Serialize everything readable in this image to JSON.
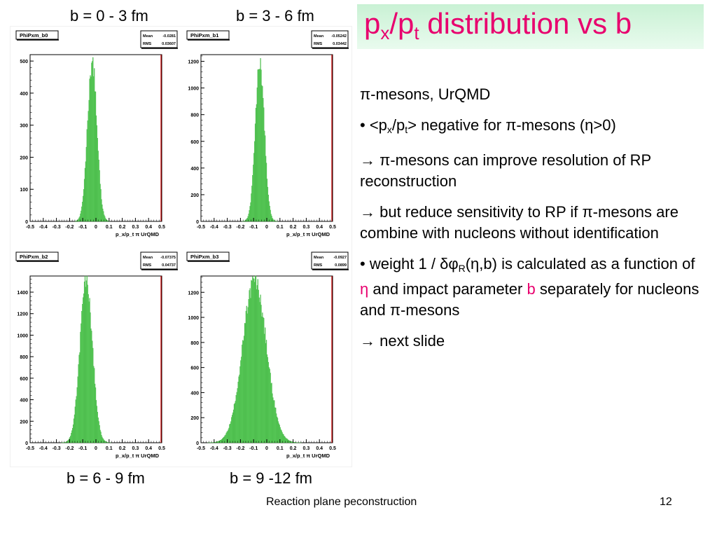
{
  "b_labels": {
    "tl": "b = 0 - 3 fm",
    "tr": "b = 3 - 6 fm",
    "bl": "b = 6 - 9 fm",
    "br": "b = 9 -12 fm"
  },
  "title": {
    "main": "p",
    "sub1": "x",
    "slash": "/p",
    "sub2": "t",
    "rest": " distribution vs b"
  },
  "text": {
    "line1": "π-mesons,  UrQMD",
    "bullet1_pre": "• <p",
    "bullet1_sub1": "x",
    "bullet1_mid": "/p",
    "bullet1_sub2": "t",
    "bullet1_post": "> negative for π-mesons (η>0)",
    "arrow1": "→ π-mesons can improve resolution of RP reconstruction",
    "arrow2": "→ but reduce sensitivity to RP if π-mesons are combine with nucleons without identification",
    "bullet2_pre": "• weight 1 / δφ",
    "bullet2_sub": "R",
    "bullet2_mid": "(η,b) is calculated as a function of ",
    "bullet2_eta": "η",
    "bullet2_mid2": " and impact parameter ",
    "bullet2_b": "b",
    "bullet2_post": " separately for nucleons and π-mesons",
    "arrow3": "→ next slide"
  },
  "footer": {
    "center": "Reaction plane peconstruction",
    "page": "12"
  },
  "colors": {
    "histogram_fill": "#5ed35e",
    "histogram_edge": "#3aa83a",
    "marker_line": "#cc0000",
    "title": "#e8006e"
  },
  "chart_data": [
    {
      "type": "bar",
      "name": "PhiPxm_b0",
      "stats": {
        "mean_label": "Mean",
        "mean": "-0.0281",
        "rms_label": "RMS",
        "rms": "0.03607"
      },
      "xlabel": "p_x/p_t  π  UrQMD",
      "xlim": [
        -0.5,
        0.5
      ],
      "ylim": [
        0,
        520
      ],
      "xticks": [
        "-0.5",
        "-0.4",
        "-0.3",
        "-0.2",
        "-0.1",
        "0",
        "0.1",
        "0.2",
        "0.3",
        "0.4",
        "0.5"
      ],
      "yticks": [
        0,
        100,
        200,
        300,
        400,
        500
      ],
      "peak": 495,
      "mean_value": -0.0281,
      "rms_value": 0.03607
    },
    {
      "type": "bar",
      "name": "PhiPxm_b1",
      "stats": {
        "mean_label": "Mean",
        "mean": "-0.05242",
        "rms_label": "RMS",
        "rms": "0.03442"
      },
      "xlabel": "p_x/p_t  π  UrQMD",
      "xlim": [
        -0.5,
        0.5
      ],
      "ylim": [
        0,
        1250
      ],
      "xticks": [
        "-0.5",
        "-0.4",
        "-0.3",
        "-0.2",
        "-0.1",
        "0",
        "0.1",
        "0.2",
        "0.3",
        "0.4",
        "0.5"
      ],
      "yticks": [
        0,
        200,
        400,
        600,
        800,
        1000,
        1200
      ],
      "peak": 1190,
      "mean_value": -0.05242,
      "rms_value": 0.03442
    },
    {
      "type": "bar",
      "name": "PhiPxm_b2",
      "stats": {
        "mean_label": "Mean",
        "mean": "-0.07375",
        "rms_label": "RMS",
        "rms": "0.04737"
      },
      "xlabel": "p_x/p_t  π  UrQMD",
      "xlim": [
        -0.5,
        0.5
      ],
      "ylim": [
        0,
        1550
      ],
      "xticks": [
        "-0.5",
        "-0.4",
        "-0.3",
        "-0.2",
        "-0.1",
        "0",
        "0.1",
        "0.2",
        "0.3",
        "0.4",
        "0.5"
      ],
      "yticks": [
        0,
        200,
        400,
        600,
        800,
        1000,
        1200,
        1400
      ],
      "peak": 1510,
      "mean_value": -0.07375,
      "rms_value": 0.04737
    },
    {
      "type": "bar",
      "name": "PhiPxm_b3",
      "stats": {
        "mean_label": "Mean",
        "mean": "-0.0927",
        "rms_label": "RMS",
        "rms": "0.0899"
      },
      "xlabel": "p_x/p_t  π  UrQMD",
      "xlim": [
        -0.5,
        0.5
      ],
      "ylim": [
        0,
        1330
      ],
      "xticks": [
        "-0.5",
        "-0.4",
        "-0.3",
        "-0.2",
        "-0.1",
        "0",
        "0.1",
        "0.2",
        "0.3",
        "0.4",
        "0.5"
      ],
      "yticks": [
        0,
        200,
        400,
        600,
        800,
        1000,
        1200
      ],
      "peak": 1290,
      "mean_value": -0.0927,
      "rms_value": 0.0899
    }
  ]
}
